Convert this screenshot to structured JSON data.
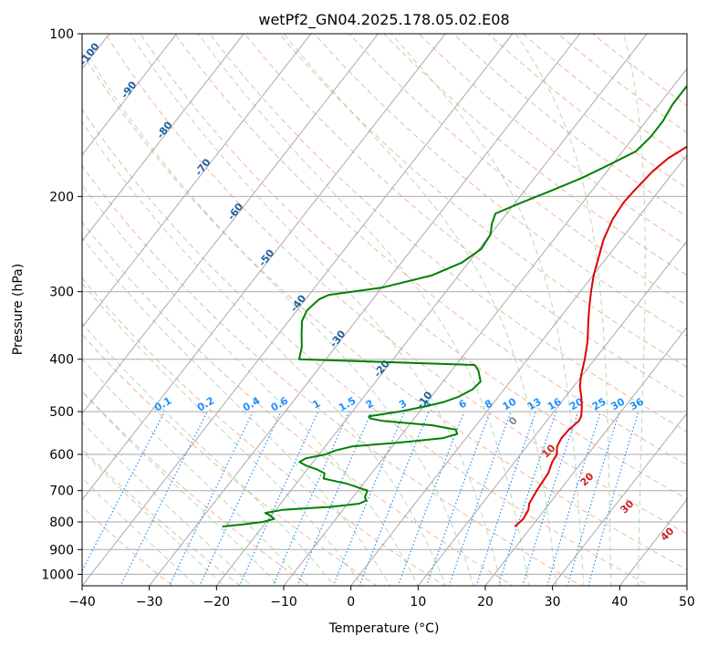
{
  "chart_data": {
    "type": "line",
    "title": "wetPf2_GN04.2025.178.05.02.E08",
    "xlabel": "Temperature (°C)",
    "ylabel": "Pressure (hPa)",
    "xlim": [
      -40,
      50
    ],
    "ylim": [
      1050,
      100
    ],
    "y_scale": "log",
    "x_ticks": [
      -40,
      -30,
      -20,
      -10,
      0,
      10,
      20,
      30,
      40,
      50
    ],
    "y_ticks": [
      100,
      200,
      300,
      400,
      500,
      600,
      700,
      800,
      900,
      1000
    ],
    "grid": true,
    "colors": {
      "temperature": "#e00000",
      "dewpoint": "#008000",
      "isotherm_label": "#1f5fa0",
      "mixing_ratio": "#1e90ff",
      "moist_adiabat_label": "#cc2222",
      "dry_adiabat": "#e8a080",
      "moist_adiabat": "#88c088",
      "skew_grid": "#aaaaaa"
    },
    "series": [
      {
        "key": "temperature",
        "pressure": [
          816,
          790,
          760,
          740,
          700,
          650,
          620,
          600,
          580,
          560,
          540,
          520,
          510,
          490,
          470,
          450,
          430,
          400,
          370,
          340,
          320,
          300,
          280,
          260,
          240,
          220,
          205,
          195,
          180,
          170,
          160,
          150,
          140,
          130,
          120,
          110,
          100
        ],
        "values": [
          17.5,
          17.9,
          17.6,
          17.0,
          16.6,
          16.3,
          15.6,
          15.4,
          14.5,
          14.2,
          14.3,
          14.8,
          14.6,
          13.6,
          12.4,
          11.0,
          9.9,
          8.5,
          6.8,
          4.6,
          3.1,
          1.6,
          0.1,
          -1.2,
          -2.6,
          -3.6,
          -3.9,
          -3.7,
          -3.2,
          -2.4,
          -0.6,
          2.2,
          6.1,
          6.4,
          6.1,
          7.3,
          10.5
        ]
      },
      {
        "key": "dewpoint",
        "pressure": [
          816,
          808,
          800,
          790,
          780,
          770,
          760,
          750,
          740,
          730,
          720,
          700,
          680,
          665,
          650,
          640,
          630,
          620,
          610,
          600,
          590,
          580,
          570,
          560,
          550,
          540,
          530,
          520,
          515,
          510,
          500,
          490,
          480,
          470,
          455,
          440,
          420,
          410,
          400,
          380,
          360,
          340,
          325,
          310,
          304,
          295,
          280,
          265,
          250,
          235,
          225,
          215,
          205,
          195,
          185,
          175,
          165,
          155,
          145,
          135,
          125,
          120,
          115,
          110,
          105,
          100
        ],
        "values": [
          -26.0,
          -23.0,
          -20.5,
          -19.2,
          -20.0,
          -21.2,
          -19.0,
          -12.0,
          -8.3,
          -7.6,
          -8.2,
          -8.6,
          -12.4,
          -16.5,
          -17.0,
          -18.5,
          -20.5,
          -22.0,
          -21.5,
          -19.0,
          -18.0,
          -16.0,
          -9.0,
          -3.5,
          -1.8,
          -2.5,
          -6.5,
          -14.5,
          -16.5,
          -17.0,
          -13.0,
          -10.0,
          -7.5,
          -6.0,
          -4.7,
          -4.4,
          -6.0,
          -7.2,
          -34.0,
          -35.0,
          -36.5,
          -38.0,
          -38.5,
          -38.0,
          -37.0,
          -30.0,
          -24.0,
          -21.0,
          -19.7,
          -20.0,
          -21.0,
          -21.7,
          -19.0,
          -16.0,
          -13.0,
          -10.5,
          -8.0,
          -7.5,
          -7.5,
          -8.0,
          -8.0,
          -7.0,
          -5.0,
          -3.0,
          -1.5,
          -0.3
        ]
      }
    ],
    "isotherm_labels": [
      "-100",
      "-90",
      "-80",
      "-70",
      "-60",
      "-50",
      "-40",
      "-30",
      "-20",
      "-10"
    ],
    "mixing_ratio_labels": [
      "0.1",
      "0.2",
      "0.4",
      "0.6",
      "1",
      "1.5",
      "2",
      "3",
      "4",
      "6",
      "8",
      "10",
      "13",
      "16",
      "20",
      "25",
      "30",
      "36"
    ],
    "moist_adiabat_labels": [
      "0",
      "10",
      "20",
      "30",
      "40"
    ]
  }
}
